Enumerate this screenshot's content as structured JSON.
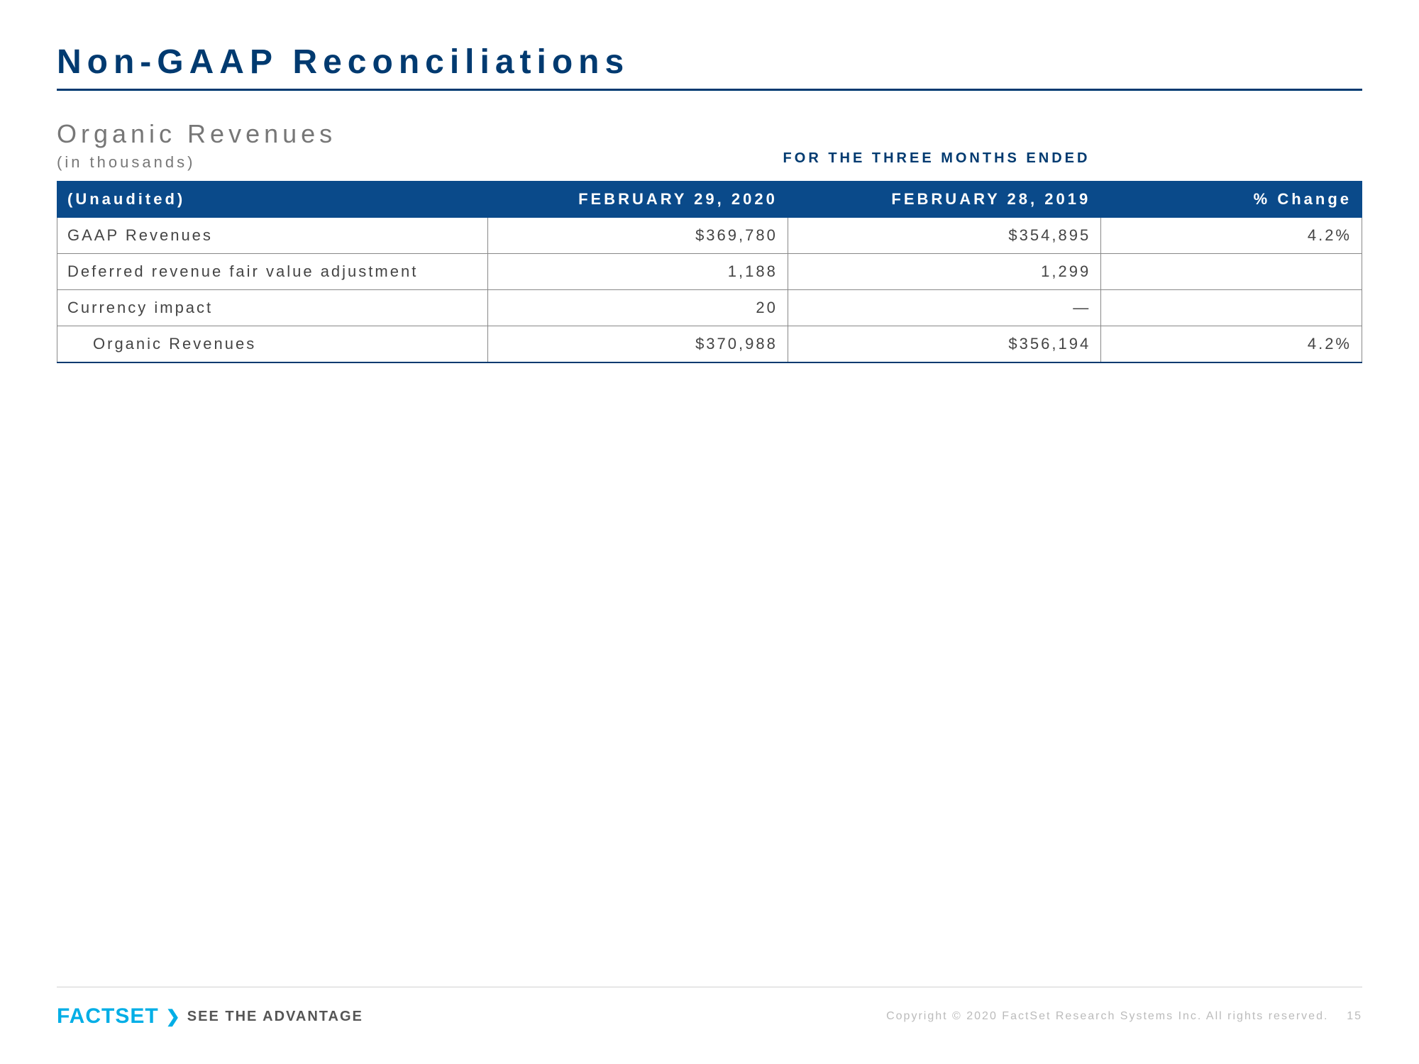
{
  "title": "Non-GAAP Reconciliations",
  "subtitle": "Organic Revenues",
  "units": "(in thousands)",
  "period_label": "FOR THE THREE MONTHS ENDED",
  "table": {
    "columns": [
      "(Unaudited)",
      "FEBRUARY 29, 2020",
      "FEBRUARY 28, 2019",
      "% Change"
    ],
    "rows": [
      {
        "label": "GAAP Revenues",
        "v1": "$369,780",
        "v2": "$354,895",
        "chg": "4.2%",
        "total": false
      },
      {
        "label": "Deferred revenue fair value adjustment",
        "v1": "1,188",
        "v2": "1,299",
        "chg": "",
        "total": false
      },
      {
        "label": "Currency impact",
        "v1": "20",
        "v2": "—",
        "chg": "",
        "total": false
      },
      {
        "label": "Organic Revenues",
        "v1": "$370,988",
        "v2": "$356,194",
        "chg": "4.2%",
        "total": true
      }
    ],
    "header_bg": "#0a4a8a",
    "header_text_color": "#ffffff",
    "border_color": "#888888",
    "total_border_color": "#003a70"
  },
  "footer": {
    "logo_text": "FACTSET",
    "tagline": "SEE THE ADVANTAGE",
    "copyright": "Copyright © 2020 FactSet Research Systems Inc. All rights reserved.",
    "page_number": "15",
    "logo_color": "#00aee6"
  }
}
